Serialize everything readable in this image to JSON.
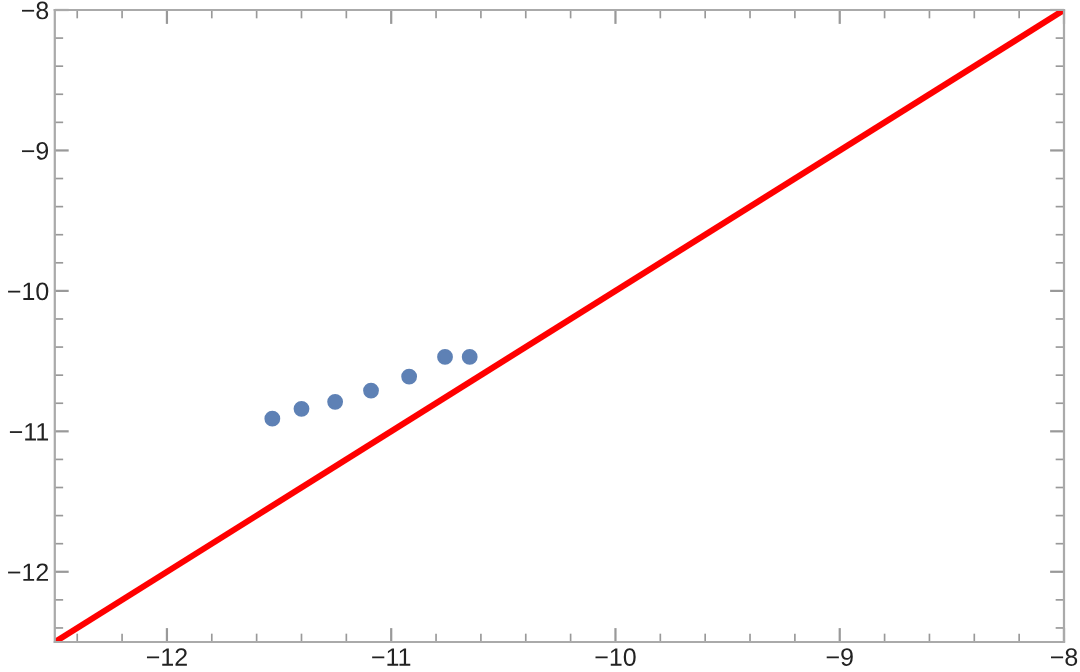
{
  "chart_data": {
    "type": "scatter",
    "xlim": [
      -12.5,
      -8
    ],
    "ylim": [
      -12.5,
      -8
    ],
    "xticks": [
      {
        "value": -12,
        "label": "−12"
      },
      {
        "value": -11,
        "label": "−11"
      },
      {
        "value": -10,
        "label": "−10"
      },
      {
        "value": -9,
        "label": "−9"
      },
      {
        "value": -8,
        "label": "−8"
      }
    ],
    "yticks": [
      {
        "value": -12,
        "label": "−12"
      },
      {
        "value": -11,
        "label": "−11"
      },
      {
        "value": -10,
        "label": "−10"
      },
      {
        "value": -9,
        "label": "−9"
      },
      {
        "value": -8,
        "label": "−8"
      }
    ],
    "series": [
      {
        "marker": "circle",
        "color": "#5e81b5",
        "x": [
          -11.53,
          -11.4,
          -11.25,
          -11.09,
          -10.92,
          -10.76,
          -10.65
        ],
        "values": [
          -10.91,
          -10.84,
          -10.79,
          -10.71,
          -10.61,
          -10.47,
          -10.47
        ]
      },
      {
        "type": "line",
        "color": "#ff0000",
        "x": [
          -12.5,
          -8
        ],
        "values": [
          -12.5,
          -8
        ]
      }
    ]
  }
}
